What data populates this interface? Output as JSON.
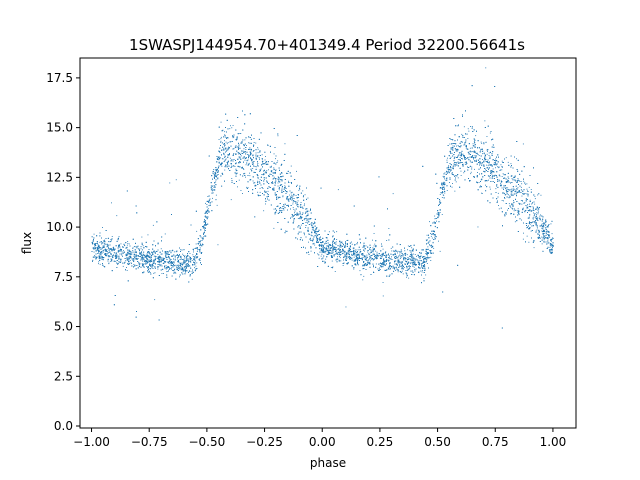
{
  "chart_data": {
    "type": "scatter",
    "title": "1SWASPJ144954.70+401349.4 Period 32200.56641s",
    "xlabel": "phase",
    "ylabel": "flux",
    "xlim": [
      -1.05,
      1.1
    ],
    "ylim": [
      -0.1,
      18.5
    ],
    "xticks": [
      -1.0,
      -0.75,
      -0.5,
      -0.25,
      0.0,
      0.25,
      0.5,
      0.75,
      1.0
    ],
    "xtick_labels": [
      "−1.00",
      "−0.75",
      "−0.50",
      "−0.25",
      "0.00",
      "0.25",
      "0.50",
      "0.75",
      "1.00"
    ],
    "yticks": [
      0.0,
      2.5,
      5.0,
      7.5,
      10.0,
      12.5,
      15.0,
      17.5
    ],
    "ytick_labels": [
      "0.0",
      "2.5",
      "5.0",
      "7.5",
      "10.0",
      "12.5",
      "15.0",
      "17.5"
    ],
    "grid": false,
    "legend": "none",
    "marker_color": "#1f77b4",
    "light_curve_profile": {
      "description_points": [
        [
          0.0,
          9.0
        ],
        [
          0.1,
          8.7
        ],
        [
          0.2,
          8.5
        ],
        [
          0.3,
          8.35
        ],
        [
          0.4,
          8.25
        ],
        [
          0.44,
          8.25
        ],
        [
          0.48,
          9.5
        ],
        [
          0.52,
          12.0
        ],
        [
          0.56,
          13.6
        ],
        [
          0.62,
          13.8
        ],
        [
          0.66,
          13.6
        ],
        [
          0.72,
          13.0
        ],
        [
          0.8,
          12.2
        ],
        [
          0.88,
          11.0
        ],
        [
          0.95,
          10.0
        ],
        [
          1.0,
          9.0
        ]
      ],
      "phase_range": [
        -1.0,
        1.0
      ]
    }
  }
}
